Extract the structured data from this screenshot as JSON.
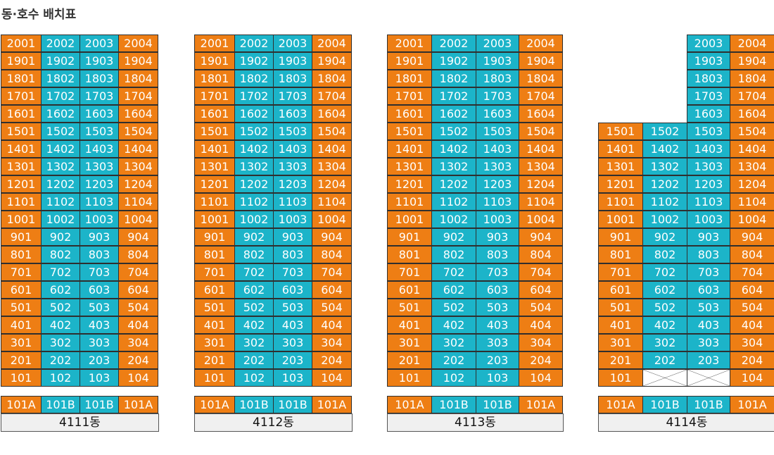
{
  "title": "동·호수 배치표",
  "colors": {
    "end_unit": "#ee7e14",
    "middle_unit": "#1cb4c9",
    "label_bg": "#f0f0f0"
  },
  "buildings": [
    {
      "name": "4111동",
      "floors": [
        [
          "2001",
          "2002",
          "2003",
          "2004"
        ],
        [
          "1901",
          "1902",
          "1903",
          "1904"
        ],
        [
          "1801",
          "1802",
          "1803",
          "1804"
        ],
        [
          "1701",
          "1702",
          "1703",
          "1704"
        ],
        [
          "1601",
          "1602",
          "1603",
          "1604"
        ],
        [
          "1501",
          "1502",
          "1503",
          "1504"
        ],
        [
          "1401",
          "1402",
          "1403",
          "1404"
        ],
        [
          "1301",
          "1302",
          "1303",
          "1304"
        ],
        [
          "1201",
          "1202",
          "1203",
          "1204"
        ],
        [
          "1101",
          "1102",
          "1103",
          "1104"
        ],
        [
          "1001",
          "1002",
          "1003",
          "1004"
        ],
        [
          "901",
          "902",
          "903",
          "904"
        ],
        [
          "801",
          "802",
          "803",
          "804"
        ],
        [
          "701",
          "702",
          "703",
          "704"
        ],
        [
          "601",
          "602",
          "603",
          "604"
        ],
        [
          "501",
          "502",
          "503",
          "504"
        ],
        [
          "401",
          "402",
          "403",
          "404"
        ],
        [
          "301",
          "302",
          "303",
          "304"
        ],
        [
          "201",
          "202",
          "203",
          "204"
        ],
        [
          "101",
          "102",
          "103",
          "104"
        ]
      ],
      "sub_units": [
        "101A",
        "101B",
        "101B",
        "101A"
      ]
    },
    {
      "name": "4112동",
      "floors": [
        [
          "2001",
          "2002",
          "2003",
          "2004"
        ],
        [
          "1901",
          "1902",
          "1903",
          "1904"
        ],
        [
          "1801",
          "1802",
          "1803",
          "1804"
        ],
        [
          "1701",
          "1702",
          "1703",
          "1704"
        ],
        [
          "1601",
          "1602",
          "1603",
          "1604"
        ],
        [
          "1501",
          "1502",
          "1503",
          "1504"
        ],
        [
          "1401",
          "1402",
          "1403",
          "1404"
        ],
        [
          "1301",
          "1302",
          "1303",
          "1304"
        ],
        [
          "1201",
          "1202",
          "1203",
          "1204"
        ],
        [
          "1101",
          "1102",
          "1103",
          "1104"
        ],
        [
          "1001",
          "1002",
          "1003",
          "1004"
        ],
        [
          "901",
          "902",
          "903",
          "904"
        ],
        [
          "801",
          "802",
          "803",
          "804"
        ],
        [
          "701",
          "702",
          "703",
          "704"
        ],
        [
          "601",
          "602",
          "603",
          "604"
        ],
        [
          "501",
          "502",
          "503",
          "504"
        ],
        [
          "401",
          "402",
          "403",
          "404"
        ],
        [
          "301",
          "302",
          "303",
          "304"
        ],
        [
          "201",
          "202",
          "203",
          "204"
        ],
        [
          "101",
          "102",
          "103",
          "104"
        ]
      ],
      "sub_units": [
        "101A",
        "101B",
        "101B",
        "101A"
      ]
    },
    {
      "name": "4113동",
      "floors": [
        [
          "2001",
          "2002",
          "2003",
          "2004"
        ],
        [
          "1901",
          "1902",
          "1903",
          "1904"
        ],
        [
          "1801",
          "1802",
          "1803",
          "1804"
        ],
        [
          "1701",
          "1702",
          "1703",
          "1704"
        ],
        [
          "1601",
          "1602",
          "1603",
          "1604"
        ],
        [
          "1501",
          "1502",
          "1503",
          "1504"
        ],
        [
          "1401",
          "1402",
          "1403",
          "1404"
        ],
        [
          "1301",
          "1302",
          "1303",
          "1304"
        ],
        [
          "1201",
          "1202",
          "1203",
          "1204"
        ],
        [
          "1101",
          "1102",
          "1103",
          "1104"
        ],
        [
          "1001",
          "1002",
          "1003",
          "1004"
        ],
        [
          "901",
          "902",
          "903",
          "904"
        ],
        [
          "801",
          "802",
          "803",
          "804"
        ],
        [
          "701",
          "702",
          "703",
          "704"
        ],
        [
          "601",
          "602",
          "603",
          "604"
        ],
        [
          "501",
          "502",
          "503",
          "504"
        ],
        [
          "401",
          "402",
          "403",
          "404"
        ],
        [
          "301",
          "302",
          "303",
          "304"
        ],
        [
          "201",
          "202",
          "203",
          "204"
        ],
        [
          "101",
          "102",
          "103",
          "104"
        ]
      ],
      "sub_units": [
        "101A",
        "101B",
        "101B",
        "101A"
      ]
    },
    {
      "name": "4114동",
      "floors": [
        [
          "",
          "",
          "2003",
          "2004"
        ],
        [
          "",
          "",
          "1903",
          "1904"
        ],
        [
          "",
          "",
          "1803",
          "1804"
        ],
        [
          "",
          "",
          "1703",
          "1704"
        ],
        [
          "",
          "",
          "1603",
          "1604"
        ],
        [
          "1501",
          "1502",
          "1503",
          "1504"
        ],
        [
          "1401",
          "1402",
          "1403",
          "1404"
        ],
        [
          "1301",
          "1302",
          "1303",
          "1304"
        ],
        [
          "1201",
          "1202",
          "1203",
          "1204"
        ],
        [
          "1101",
          "1102",
          "1103",
          "1104"
        ],
        [
          "1001",
          "1002",
          "1003",
          "1004"
        ],
        [
          "901",
          "902",
          "903",
          "904"
        ],
        [
          "801",
          "802",
          "803",
          "804"
        ],
        [
          "701",
          "702",
          "703",
          "704"
        ],
        [
          "601",
          "602",
          "603",
          "604"
        ],
        [
          "501",
          "502",
          "503",
          "504"
        ],
        [
          "401",
          "402",
          "403",
          "404"
        ],
        [
          "301",
          "302",
          "303",
          "304"
        ],
        [
          "201",
          "202",
          "203",
          "204"
        ],
        [
          "101",
          "X",
          "X",
          "104"
        ]
      ],
      "sub_units": [
        "101A",
        "101B",
        "101B",
        "101A"
      ]
    }
  ]
}
